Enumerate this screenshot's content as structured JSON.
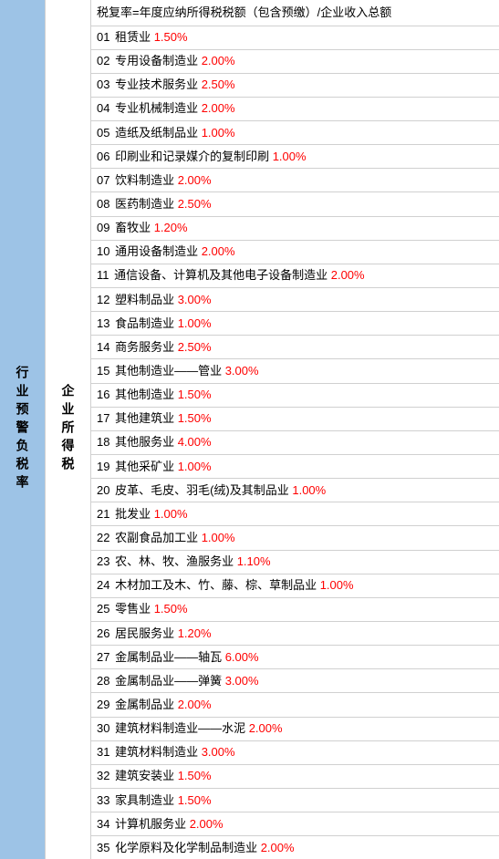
{
  "leftLabel": "行业预警负税率",
  "midLabel": "企业所得税",
  "header": "税复率=年度应纳所得税税额（包含预缴）/企业收入总额",
  "colors": {
    "leftBg": "#9dc3e6",
    "rateColor": "#ff0000",
    "borderColor": "#d0d0d0",
    "textColor": "#000000"
  },
  "rows": [
    {
      "num": "01",
      "name": "租赁业",
      "rate": "1.50%"
    },
    {
      "num": "02",
      "name": "专用设备制造业",
      "rate": "2.00%"
    },
    {
      "num": "03",
      "name": "专业技术服务业",
      "rate": "2.50%"
    },
    {
      "num": "04",
      "name": "专业机械制造业",
      "rate": "2.00%"
    },
    {
      "num": "05",
      "name": "造纸及纸制品业",
      "rate": "1.00%"
    },
    {
      "num": "06",
      "name": "印刷业和记录媒介的复制印刷",
      "rate": "1.00%"
    },
    {
      "num": "07",
      "name": "饮料制造业",
      "rate": "2.00%"
    },
    {
      "num": "08",
      "name": "医药制造业",
      "rate": "2.50%"
    },
    {
      "num": "09",
      "name": "畜牧业",
      "rate": "1.20%"
    },
    {
      "num": "10",
      "name": "通用设备制造业",
      "rate": "2.00%"
    },
    {
      "num": "11",
      "name": "通信设备、计算机及其他电子设备制造业",
      "rate": "2.00%"
    },
    {
      "num": "12",
      "name": "塑料制品业",
      "rate": "3.00%"
    },
    {
      "num": "13",
      "name": "食品制造业",
      "rate": "1.00%"
    },
    {
      "num": "14",
      "name": "商务服务业",
      "rate": "2.50%"
    },
    {
      "num": "15",
      "name": "其他制造业——管业",
      "rate": "3.00%"
    },
    {
      "num": "16",
      "name": "其他制造业",
      "rate": "1.50%"
    },
    {
      "num": "17",
      "name": "其他建筑业",
      "rate": "1.50%"
    },
    {
      "num": "18",
      "name": "其他服务业",
      "rate": "4.00%"
    },
    {
      "num": "19",
      "name": "其他采矿业",
      "rate": "1.00%"
    },
    {
      "num": "20",
      "name": "皮革、毛皮、羽毛(绒)及其制品业",
      "rate": "1.00%"
    },
    {
      "num": "21",
      "name": "批发业",
      "rate": "1.00%"
    },
    {
      "num": "22",
      "name": "农副食品加工业",
      "rate": "1.00%"
    },
    {
      "num": "23",
      "name": "农、林、牧、渔服务业",
      "rate": "1.10%"
    },
    {
      "num": "24",
      "name": "木材加工及木、竹、藤、棕、草制品业",
      "rate": "1.00%"
    },
    {
      "num": "25",
      "name": "零售业",
      "rate": "1.50%"
    },
    {
      "num": "26",
      "name": "居民服务业",
      "rate": "1.20%"
    },
    {
      "num": "27",
      "name": "金属制品业——轴瓦",
      "rate": "6.00%"
    },
    {
      "num": "28",
      "name": "金属制品业——弹簧",
      "rate": "3.00%"
    },
    {
      "num": "29",
      "name": "金属制品业",
      "rate": "2.00%"
    },
    {
      "num": "30",
      "name": "建筑材料制造业——水泥",
      "rate": "2.00%"
    },
    {
      "num": "31",
      "name": "建筑材料制造业",
      "rate": "3.00%"
    },
    {
      "num": "32",
      "name": "建筑安装业",
      "rate": "1.50%"
    },
    {
      "num": "33",
      "name": "家具制造业",
      "rate": "1.50%"
    },
    {
      "num": "34",
      "name": "计算机服务业",
      "rate": "2.00%"
    },
    {
      "num": "35",
      "name": "化学原料及化学制品制造业",
      "rate": "2.00%"
    }
  ]
}
